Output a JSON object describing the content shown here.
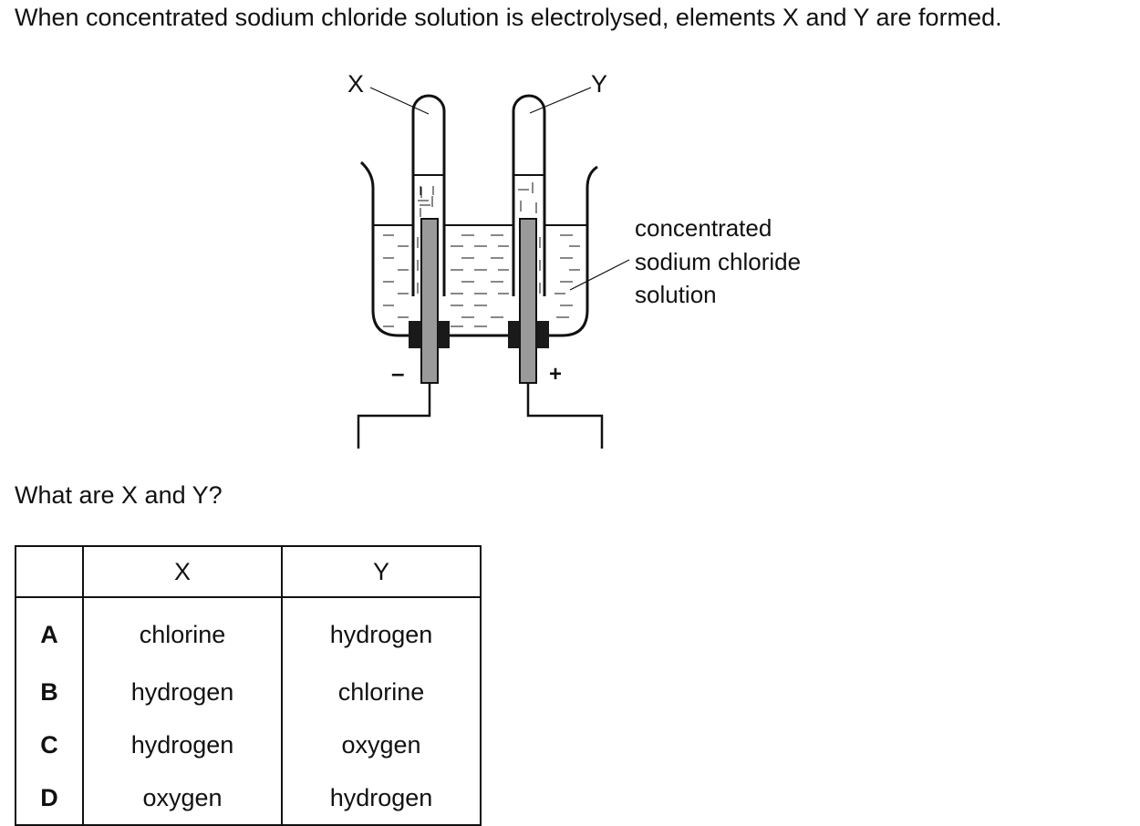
{
  "question": {
    "stem": "When concentrated sodium chloride solution is electrolysed, elements X and Y are formed.",
    "prompt": "What are X and Y?"
  },
  "diagram": {
    "label_x": "X",
    "label_y": "Y",
    "solution_label_lines": [
      "concentrated",
      "sodium chloride",
      "solution"
    ],
    "cathode_sign": "–",
    "anode_sign": "+"
  },
  "table": {
    "headers": [
      "",
      "X",
      "Y"
    ],
    "rows": [
      {
        "key": "A",
        "x": "chlorine",
        "y": "hydrogen"
      },
      {
        "key": "B",
        "x": "hydrogen",
        "y": "chlorine"
      },
      {
        "key": "C",
        "x": "hydrogen",
        "y": "oxygen"
      },
      {
        "key": "D",
        "x": "oxygen",
        "y": "hydrogen"
      }
    ]
  },
  "colors": {
    "ink": "#111111",
    "electrode": "#9a9a9a",
    "bung": "#1a1a1a"
  }
}
